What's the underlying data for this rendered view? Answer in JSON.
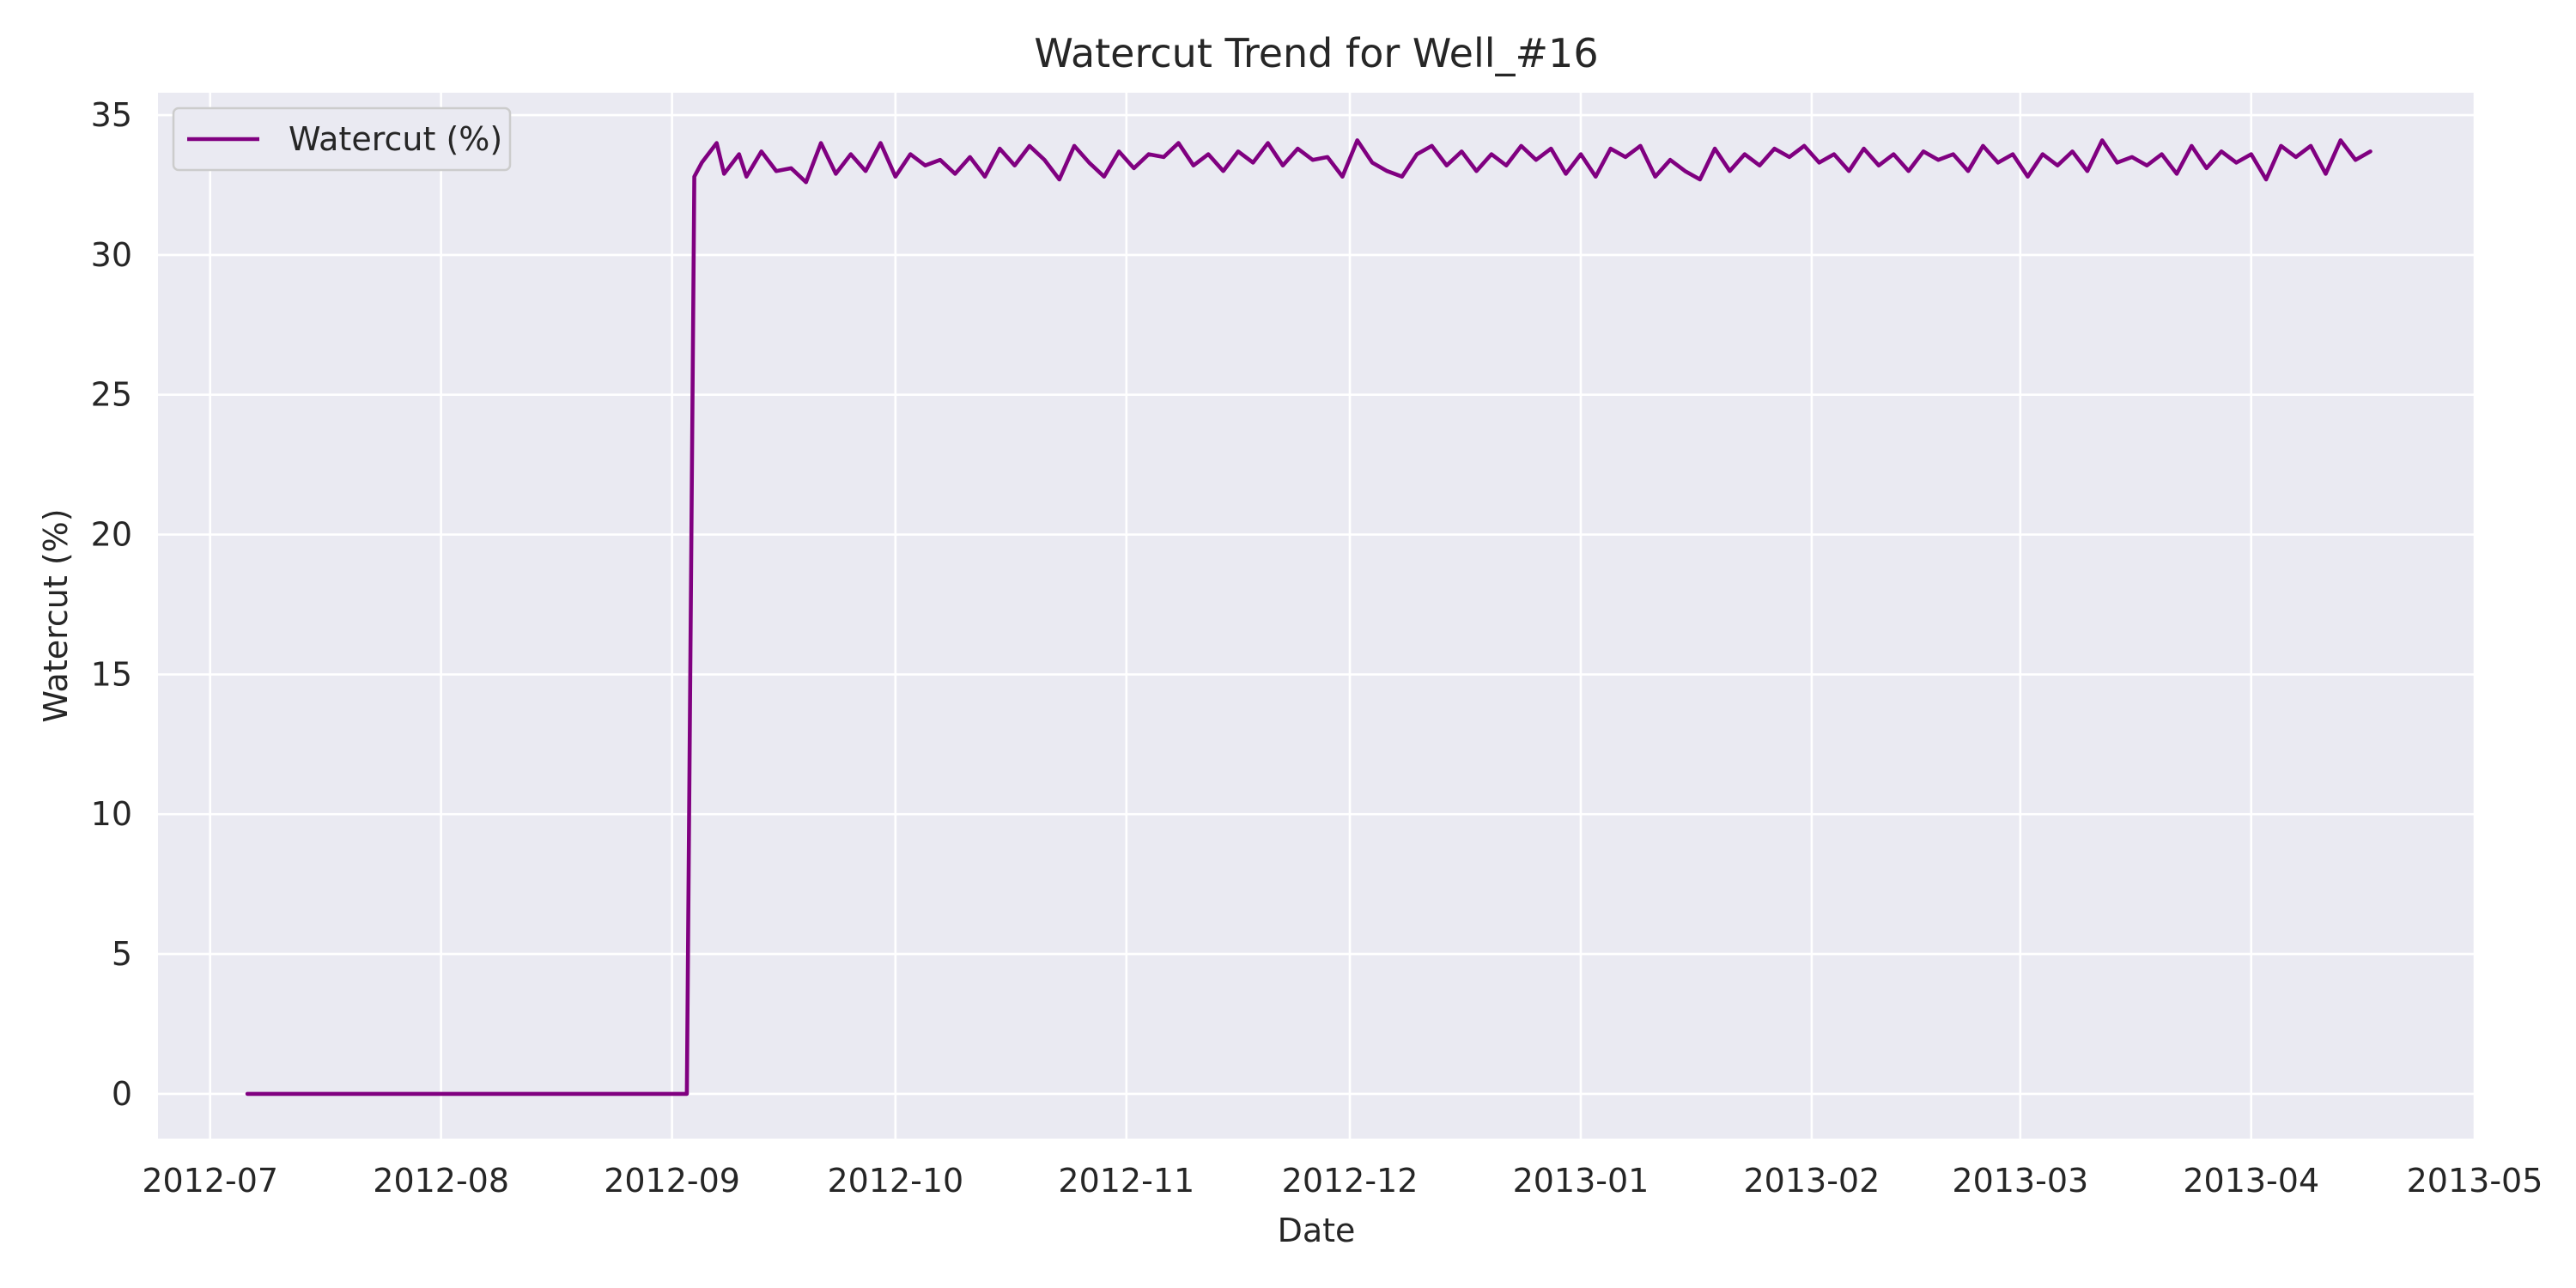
{
  "chart_data": {
    "type": "line",
    "title": "Watercut Trend for Well_#16",
    "xlabel": "Date",
    "ylabel": "Watercut (%)",
    "x_axis": {
      "kind": "date",
      "range": [
        "2012-06-24",
        "2013-05-01"
      ],
      "ticks": [
        "2012-07-01",
        "2012-08-01",
        "2012-09-01",
        "2012-10-01",
        "2012-11-01",
        "2012-12-01",
        "2013-01-01",
        "2013-02-01",
        "2013-03-01",
        "2013-04-01",
        "2013-05-01"
      ],
      "tick_labels": [
        "2012-07",
        "2012-08",
        "2012-09",
        "2012-10",
        "2012-11",
        "2012-12",
        "2013-01",
        "2013-02",
        "2013-03",
        "2013-04",
        "2013-05"
      ]
    },
    "y_axis": {
      "range": [
        -1.6,
        35.8
      ],
      "ticks": [
        0,
        5,
        10,
        15,
        20,
        25,
        30,
        35
      ],
      "tick_labels": [
        "0",
        "5",
        "10",
        "15",
        "20",
        "25",
        "30",
        "35"
      ]
    },
    "grid": true,
    "legend": {
      "position": "top-left"
    },
    "colors": {
      "background": "#eaeaf2",
      "grid": "#ffffff",
      "text": "#262626",
      "series": "#800080"
    },
    "series": [
      {
        "name": "Watercut (%)",
        "color": "#800080",
        "x": [
          "2012-07-06",
          "2012-07-18",
          "2012-07-30",
          "2012-08-11",
          "2012-08-23",
          "2012-09-03",
          "2012-09-04",
          "2012-09-05",
          "2012-09-07",
          "2012-09-08",
          "2012-09-10",
          "2012-09-11",
          "2012-09-13",
          "2012-09-15",
          "2012-09-17",
          "2012-09-19",
          "2012-09-21",
          "2012-09-23",
          "2012-09-25",
          "2012-09-27",
          "2012-09-29",
          "2012-10-01",
          "2012-10-03",
          "2012-10-05",
          "2012-10-07",
          "2012-10-09",
          "2012-10-11",
          "2012-10-13",
          "2012-10-15",
          "2012-10-17",
          "2012-10-19",
          "2012-10-21",
          "2012-10-23",
          "2012-10-25",
          "2012-10-27",
          "2012-10-29",
          "2012-10-31",
          "2012-11-02",
          "2012-11-04",
          "2012-11-06",
          "2012-11-08",
          "2012-11-10",
          "2012-11-12",
          "2012-11-14",
          "2012-11-16",
          "2012-11-18",
          "2012-11-20",
          "2012-11-22",
          "2012-11-24",
          "2012-11-26",
          "2012-11-28",
          "2012-11-30",
          "2012-12-02",
          "2012-12-04",
          "2012-12-06",
          "2012-12-08",
          "2012-12-10",
          "2012-12-12",
          "2012-12-14",
          "2012-12-16",
          "2012-12-18",
          "2012-12-20",
          "2012-12-22",
          "2012-12-24",
          "2012-12-26",
          "2012-12-28",
          "2012-12-30",
          "2013-01-01",
          "2013-01-03",
          "2013-01-05",
          "2013-01-07",
          "2013-01-09",
          "2013-01-11",
          "2013-01-13",
          "2013-01-15",
          "2013-01-17",
          "2013-01-19",
          "2013-01-21",
          "2013-01-23",
          "2013-01-25",
          "2013-01-27",
          "2013-01-29",
          "2013-01-31",
          "2013-02-02",
          "2013-02-04",
          "2013-02-06",
          "2013-02-08",
          "2013-02-10",
          "2013-02-12",
          "2013-02-14",
          "2013-02-16",
          "2013-02-18",
          "2013-02-20",
          "2013-02-22",
          "2013-02-24",
          "2013-02-26",
          "2013-02-28",
          "2013-03-02",
          "2013-03-04",
          "2013-03-06",
          "2013-03-08",
          "2013-03-10",
          "2013-03-12",
          "2013-03-14",
          "2013-03-16",
          "2013-03-18",
          "2013-03-20",
          "2013-03-22",
          "2013-03-24",
          "2013-03-26",
          "2013-03-28",
          "2013-03-30",
          "2013-04-01",
          "2013-04-03",
          "2013-04-05",
          "2013-04-07",
          "2013-04-09",
          "2013-04-11",
          "2013-04-13",
          "2013-04-15",
          "2013-04-17"
        ],
        "y": [
          0,
          0,
          0,
          0,
          0,
          0,
          32.8,
          33.3,
          34.0,
          32.9,
          33.6,
          32.8,
          33.7,
          33.0,
          33.1,
          32.6,
          34.0,
          32.9,
          33.6,
          33.0,
          34.0,
          32.8,
          33.6,
          33.2,
          33.4,
          32.9,
          33.5,
          32.8,
          33.8,
          33.2,
          33.9,
          33.4,
          32.7,
          33.9,
          33.3,
          32.8,
          33.7,
          33.1,
          33.6,
          33.5,
          34.0,
          33.2,
          33.6,
          33.0,
          33.7,
          33.3,
          34.0,
          33.2,
          33.8,
          33.4,
          33.5,
          32.8,
          34.1,
          33.3,
          33.0,
          32.8,
          33.6,
          33.9,
          33.2,
          33.7,
          33.0,
          33.6,
          33.2,
          33.9,
          33.4,
          33.8,
          32.9,
          33.6,
          32.8,
          33.8,
          33.5,
          33.9,
          32.8,
          33.4,
          33.0,
          32.7,
          33.8,
          33.0,
          33.6,
          33.2,
          33.8,
          33.5,
          33.9,
          33.3,
          33.6,
          33.0,
          33.8,
          33.2,
          33.6,
          33.0,
          33.7,
          33.4,
          33.6,
          33.0,
          33.9,
          33.3,
          33.6,
          32.8,
          33.6,
          33.2,
          33.7,
          33.0,
          34.1,
          33.3,
          33.5,
          33.2,
          33.6,
          32.9,
          33.9,
          33.1,
          33.7,
          33.3,
          33.6,
          32.7,
          33.9,
          33.5,
          33.9,
          32.9,
          34.1,
          33.4,
          33.7
        ]
      }
    ]
  }
}
